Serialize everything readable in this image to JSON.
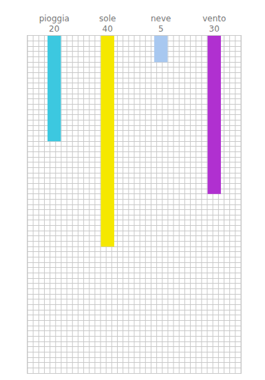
{
  "chart_data": {
    "type": "bar",
    "categories": [
      "pioggia",
      "sole",
      "neve",
      "vento"
    ],
    "values": [
      20,
      40,
      5,
      30
    ],
    "colors": [
      "#3cc8e0",
      "#f5e800",
      "#a8c8f0",
      "#b030d0"
    ],
    "ylim": [
      0,
      64
    ],
    "yticks": [
      0,
      1,
      2,
      3,
      4,
      5,
      6,
      7,
      8,
      9,
      10,
      11,
      12,
      13,
      14,
      15,
      16,
      17,
      18,
      19,
      20,
      21,
      22,
      23,
      24,
      25,
      26,
      27,
      28,
      29,
      30,
      31,
      32,
      33,
      34,
      35,
      36,
      37,
      38,
      39,
      40,
      41,
      42,
      43,
      44,
      45,
      46,
      47,
      48,
      49,
      50,
      51,
      52,
      53,
      54,
      55,
      56,
      57,
      58,
      59,
      60,
      61,
      62,
      63,
      64
    ],
    "grid": true,
    "data_labels": true,
    "tick_labels": "x"
  }
}
